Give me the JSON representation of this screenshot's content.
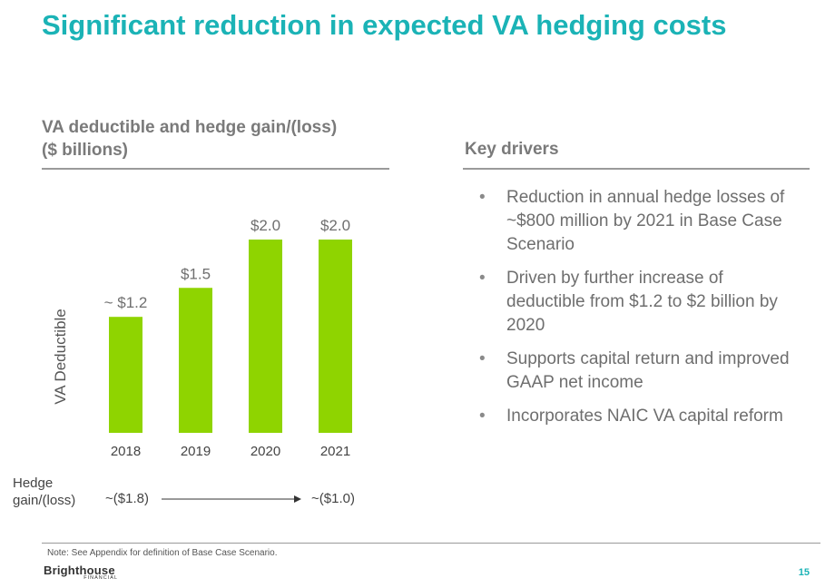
{
  "title": "Significant reduction in expected VA hedging costs",
  "chart_section": {
    "heading_line1": "VA deductible and hedge gain/(loss)",
    "heading_line2": "($ billions)"
  },
  "chart_data": {
    "type": "bar",
    "title": "VA deductible and hedge gain/(loss) ($ billions)",
    "categories": [
      "2018",
      "2019",
      "2020",
      "2021"
    ],
    "values": [
      1.2,
      1.5,
      2.0,
      2.0
    ],
    "data_labels": [
      "~ $1.2",
      "$1.5",
      "$2.0",
      "$2.0"
    ],
    "ylabel": "VA Deductible",
    "xlabel": "",
    "ylim": [
      0,
      2.0
    ],
    "bar_color": "#8fd400",
    "grid": false
  },
  "hedge": {
    "label": "Hedge gain/(loss)",
    "start_value": "~($1.8)",
    "end_value": "~($1.0)"
  },
  "drivers": {
    "heading": "Key drivers",
    "items": [
      "Reduction in annual hedge losses of ~$800 million by 2021 in Base Case Scenario",
      "Driven by further increase of deductible from $1.2 to $2 billion by 2020",
      "Supports capital return and improved GAAP net income",
      "Incorporates NAIC VA capital reform"
    ],
    "bullet": "•"
  },
  "footer": {
    "note": "Note:  See Appendix for definition of Base Case Scenario.",
    "logo_main": "Brighthouse",
    "logo_sub": "FINANCIAL",
    "page_number": "15"
  },
  "colors": {
    "accent": "#1bb3b6",
    "bar": "#8fd400"
  }
}
